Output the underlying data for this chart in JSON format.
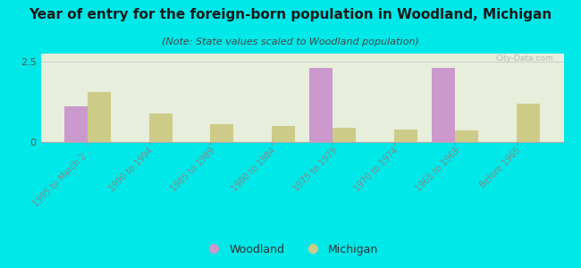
{
  "title": "Year of entry for the foreign-born population in Woodland, Michigan",
  "subtitle": "(Note: State values scaled to Woodland population)",
  "categories": [
    "1995 to March 2...",
    "1990 to 1994",
    "1985 to 1989",
    "1980 to 1984",
    "1975 to 1979",
    "1970 to 1974",
    "1965 to 1969",
    "Before 1965"
  ],
  "woodland_values": [
    1.1,
    0.0,
    0.0,
    0.0,
    2.3,
    0.0,
    2.3,
    0.0
  ],
  "michigan_values": [
    1.55,
    0.9,
    0.55,
    0.5,
    0.45,
    0.4,
    0.35,
    1.2
  ],
  "woodland_color": "#cc99cc",
  "michigan_color": "#cccc88",
  "background_color": "#00e8e8",
  "plot_bg_color": "#e8eedc",
  "ylim": [
    0,
    2.75
  ],
  "yticks": [
    0,
    2.5
  ],
  "bar_width": 0.38,
  "title_fontsize": 11,
  "subtitle_fontsize": 8,
  "watermark": "City-Data.com"
}
